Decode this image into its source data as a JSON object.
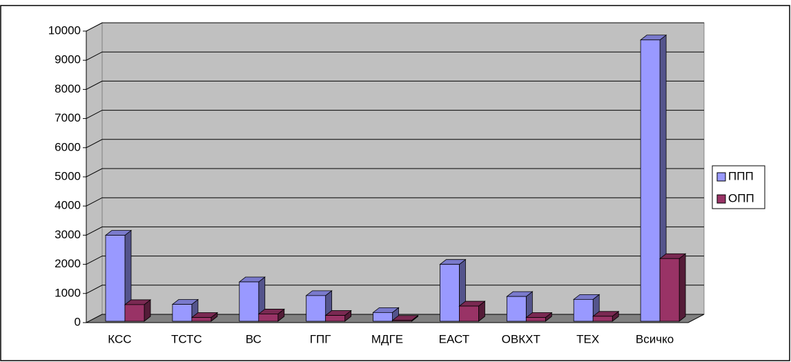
{
  "chart_data": {
    "type": "bar3d",
    "categories": [
      "КСС",
      "ТСТС",
      "ВС",
      "ГПГ",
      "МДГЕ",
      "ЕАСТ",
      "ОВКХТ",
      "ТЕХ",
      "Всичко"
    ],
    "series": [
      {
        "name": "ППП",
        "color": "#9999ff",
        "values": [
          2950,
          580,
          1350,
          880,
          300,
          1950,
          850,
          750,
          9650
        ]
      },
      {
        "name": "ОПП",
        "color": "#993366",
        "values": [
          570,
          130,
          250,
          200,
          30,
          520,
          130,
          170,
          2150
        ]
      }
    ],
    "ylim": [
      0,
      10000
    ],
    "yticks": [
      0,
      1000,
      2000,
      3000,
      4000,
      5000,
      6000,
      7000,
      8000,
      9000,
      10000
    ],
    "grid": true,
    "legend": "right"
  }
}
